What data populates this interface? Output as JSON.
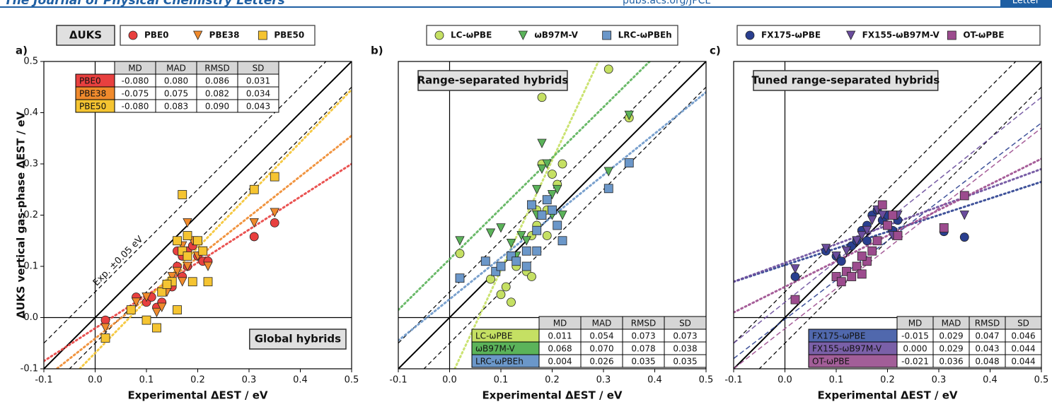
{
  "header": {
    "journal": "The Journal of Physical Chemistry Letters",
    "url": "pubs.acs.org/JPCL",
    "article_type": "Letter"
  },
  "chart_data": [
    {
      "type": "scatter",
      "panel_label": "a)",
      "legend_title": "ΔUKS",
      "annotation": "Global hybrids",
      "annotation_corner": "lower right",
      "reference_label": "Exp. ±0.05 eV",
      "reference_offsets": [
        -0.05,
        0,
        0.05
      ],
      "xlabel": "Experimental ΔEST / eV",
      "ylabel": "ΔUKS vertical gas-phase ΔEST / eV",
      "xlim": [
        -0.1,
        0.5
      ],
      "ylim": [
        -0.1,
        0.5
      ],
      "xticks": [
        -0.1,
        {
          "value": 0,
          "label": "0.0"
        },
        0.1,
        0.2,
        0.3,
        0.4,
        0.5
      ],
      "yticks": [
        -0.1,
        {
          "value": 0,
          "label": "0.0"
        },
        0.1,
        0.2,
        0.3,
        0.4,
        0.5
      ],
      "series": [
        {
          "name": "PBE0",
          "color": "#e8403f",
          "marker": "circle",
          "x": [
            0.02,
            0.08,
            0.1,
            0.11,
            0.12,
            0.13,
            0.15,
            0.16,
            0.17,
            0.17,
            0.18,
            0.19,
            0.2,
            0.21,
            0.22,
            0.2,
            0.18,
            0.31,
            0.35,
            0.16
          ],
          "y": [
            -0.005,
            0.04,
            0.03,
            0.04,
            0.02,
            0.03,
            0.06,
            0.1,
            0.12,
            0.08,
            0.13,
            0.14,
            0.12,
            0.11,
            0.11,
            0.15,
            0.1,
            0.158,
            0.185,
            0.13
          ],
          "fits": [
            {
              "style": "dotted",
              "x": [
                -0.1,
                0.5
              ],
              "y": [
                -0.085,
                0.3
              ]
            }
          ]
        },
        {
          "name": "PBE38",
          "color": "#f08a2c",
          "marker": "triangle",
          "x": [
            0.02,
            0.08,
            0.1,
            0.12,
            0.14,
            0.16,
            0.17,
            0.18,
            0.19,
            0.2,
            0.21,
            0.22,
            0.15,
            0.18,
            0.31,
            0.35,
            0.13,
            0.17
          ],
          "y": [
            -0.02,
            0.03,
            0.04,
            0.01,
            0.05,
            0.09,
            0.14,
            0.185,
            0.15,
            0.12,
            0.13,
            0.1,
            0.08,
            0.1,
            0.185,
            0.205,
            0.02,
            0.07
          ],
          "fits": [
            {
              "style": "dotted",
              "x": [
                -0.1,
                0.5
              ],
              "y": [
                -0.12,
                0.355
              ]
            }
          ]
        },
        {
          "name": "PBE50",
          "color": "#f5c431",
          "marker": "square",
          "x": [
            0.02,
            0.07,
            0.1,
            0.12,
            0.13,
            0.15,
            0.16,
            0.16,
            0.17,
            0.17,
            0.18,
            0.19,
            0.2,
            0.21,
            0.22,
            0.31,
            0.35,
            0.14,
            0.18
          ],
          "y": [
            -0.04,
            0.015,
            -0.005,
            -0.02,
            0.05,
            0.07,
            0.015,
            0.15,
            0.24,
            0.13,
            0.12,
            0.07,
            0.15,
            0.13,
            0.07,
            0.25,
            0.275,
            0.065,
            0.16
          ],
          "fits": [
            {
              "style": "dotted",
              "x": [
                -0.03,
                0.5
              ],
              "y": [
                -0.1,
                0.445
              ]
            }
          ]
        }
      ],
      "table_corner": "upper left",
      "table": {
        "columns": [
          "MD",
          "MAD",
          "RMSD",
          "SD"
        ],
        "rows": [
          {
            "label": "PBE0",
            "color": "#e8403f",
            "cells": [
              "-0.080",
              "0.080",
              "0.086",
              "0.031"
            ]
          },
          {
            "label": "PBE38",
            "color": "#f08a2c",
            "cells": [
              "-0.075",
              "0.075",
              "0.082",
              "0.034"
            ]
          },
          {
            "label": "PBE50",
            "color": "#f5c431",
            "cells": [
              "-0.080",
              "0.083",
              "0.090",
              "0.043"
            ]
          }
        ]
      }
    },
    {
      "type": "scatter",
      "panel_label": "b)",
      "annotation": "Range-separated hybrids",
      "annotation_corner": "upper left",
      "reference_offsets": [
        -0.05,
        0,
        0.05
      ],
      "xlabel": "Experimental ΔEST / eV",
      "xlim": [
        -0.1,
        0.5
      ],
      "ylim": [
        -0.1,
        0.5
      ],
      "xticks": [
        -0.1,
        {
          "value": 0,
          "label": "0.0"
        },
        0.1,
        0.2,
        0.3,
        0.4,
        0.5
      ],
      "series": [
        {
          "name": "LC-ωPBE",
          "color": "#c5e063",
          "marker": "circle",
          "x": [
            0.02,
            0.08,
            0.1,
            0.11,
            0.12,
            0.13,
            0.15,
            0.16,
            0.16,
            0.17,
            0.18,
            0.18,
            0.19,
            0.2,
            0.21,
            0.22,
            0.17,
            0.31,
            0.35,
            0.19
          ],
          "y": [
            0.125,
            0.075,
            0.045,
            0.06,
            0.03,
            0.1,
            0.09,
            0.08,
            0.16,
            0.21,
            0.43,
            0.3,
            0.21,
            0.28,
            0.26,
            0.3,
            0.18,
            0.485,
            0.39,
            0.16
          ],
          "fits": [
            {
              "style": "dotted",
              "x": [
                0.01,
                0.29
              ],
              "y": [
                -0.1,
                0.5
              ]
            }
          ]
        },
        {
          "name": "ωB97M-V",
          "color": "#5bb35a",
          "marker": "triangle",
          "x": [
            0.02,
            0.08,
            0.1,
            0.12,
            0.14,
            0.15,
            0.16,
            0.17,
            0.18,
            0.18,
            0.19,
            0.2,
            0.21,
            0.2,
            0.22,
            0.31,
            0.35,
            0.13,
            0.17
          ],
          "y": [
            0.15,
            0.165,
            0.175,
            0.145,
            0.16,
            0.15,
            0.22,
            0.25,
            0.34,
            0.29,
            0.3,
            0.24,
            0.25,
            0.2,
            0.2,
            0.285,
            0.395,
            0.12,
            0.2
          ],
          "fits": [
            {
              "style": "dotted",
              "x": [
                -0.1,
                0.39
              ],
              "y": [
                0.015,
                0.5
              ]
            }
          ]
        },
        {
          "name": "LRC-ωPBEh",
          "color": "#6b97c9",
          "marker": "square",
          "x": [
            0.02,
            0.07,
            0.09,
            0.1,
            0.12,
            0.13,
            0.15,
            0.16,
            0.17,
            0.18,
            0.19,
            0.2,
            0.21,
            0.22,
            0.15,
            0.31,
            0.35,
            0.17
          ],
          "y": [
            0.077,
            0.11,
            0.09,
            0.1,
            0.12,
            0.11,
            0.13,
            0.22,
            0.17,
            0.2,
            0.23,
            0.21,
            0.18,
            0.15,
            0.1,
            0.252,
            0.302,
            0.13
          ],
          "fits": [
            {
              "style": "dotted",
              "x": [
                -0.1,
                0.5
              ],
              "y": [
                -0.045,
                0.44
              ]
            }
          ]
        }
      ],
      "table_corner": "lower right",
      "table": {
        "columns": [
          "MD",
          "MAD",
          "RMSD",
          "SD"
        ],
        "rows": [
          {
            "label": "LC-ωPBE",
            "color": "#c5e063",
            "cells": [
              "0.011",
              "0.054",
              "0.073",
              "0.073"
            ]
          },
          {
            "label": "ωB97M-V",
            "color": "#5bb35a",
            "cells": [
              "0.068",
              "0.070",
              "0.078",
              "0.038"
            ]
          },
          {
            "label": "LRC-ωPBEh",
            "color": "#6b97c9",
            "cells": [
              "0.004",
              "0.026",
              "0.035",
              "0.035"
            ]
          }
        ]
      }
    },
    {
      "type": "scatter",
      "panel_label": "c)",
      "annotation": "Tuned range-separated hybrids",
      "annotation_corner": "upper left",
      "reference_offsets": [
        -0.05,
        0,
        0.05
      ],
      "xlabel": "Experimental ΔEST / eV",
      "xlim": [
        -0.1,
        0.5
      ],
      "ylim": [
        -0.1,
        0.5
      ],
      "xticks": [
        -0.1,
        {
          "value": 0,
          "label": "0.0"
        },
        0.1,
        0.2,
        0.3,
        0.4,
        0.5
      ],
      "series": [
        {
          "name": "FX175-ωPBE",
          "color": "#2a3f8f",
          "marker": "circle",
          "x": [
            0.02,
            0.08,
            0.1,
            0.11,
            0.13,
            0.14,
            0.15,
            0.16,
            0.17,
            0.18,
            0.19,
            0.2,
            0.21,
            0.22,
            0.16,
            0.31,
            0.35
          ],
          "y": [
            0.08,
            0.13,
            0.12,
            0.11,
            0.14,
            0.15,
            0.17,
            0.18,
            0.2,
            0.21,
            0.19,
            0.2,
            0.17,
            0.19,
            0.15,
            0.168,
            0.157
          ],
          "fits": [
            {
              "style": "dotted",
              "x": [
                -0.1,
                0.5
              ],
              "y": [
                0.07,
                0.265
              ]
            },
            {
              "style": "dashed",
              "x": [
                -0.1,
                0.5
              ],
              "y": [
                -0.08,
                0.38
              ]
            }
          ]
        },
        {
          "name": "FX155-ωB97M-V",
          "color": "#6a4c9c",
          "marker": "triangle",
          "x": [
            0.02,
            0.08,
            0.1,
            0.12,
            0.14,
            0.15,
            0.17,
            0.18,
            0.19,
            0.2,
            0.21,
            0.22,
            0.16,
            0.31,
            0.35
          ],
          "y": [
            0.095,
            0.135,
            0.12,
            0.13,
            0.15,
            0.16,
            0.19,
            0.21,
            0.2,
            0.18,
            0.16,
            0.2,
            0.17,
            0.175,
            0.2
          ],
          "fits": [
            {
              "style": "dotted",
              "x": [
                -0.1,
                0.5
              ],
              "y": [
                0.07,
                0.29
              ]
            },
            {
              "style": "dashed",
              "x": [
                -0.1,
                0.5
              ],
              "y": [
                -0.05,
                0.43
              ]
            }
          ]
        },
        {
          "name": "OT-ωPBE",
          "color": "#9c4c8e",
          "marker": "square",
          "x": [
            0.02,
            0.1,
            0.11,
            0.12,
            0.13,
            0.14,
            0.15,
            0.16,
            0.17,
            0.18,
            0.19,
            0.2,
            0.21,
            0.22,
            0.15,
            0.31,
            0.35
          ],
          "y": [
            0.035,
            0.08,
            0.07,
            0.09,
            0.08,
            0.1,
            0.085,
            0.11,
            0.13,
            0.15,
            0.22,
            0.18,
            0.2,
            0.16,
            0.12,
            0.175,
            0.238
          ],
          "fits": [
            {
              "style": "dotted",
              "x": [
                -0.1,
                0.5
              ],
              "y": [
                0.01,
                0.31
              ]
            },
            {
              "style": "dashed",
              "x": [
                -0.1,
                0.5
              ],
              "y": [
                -0.1,
                0.37
              ]
            }
          ]
        }
      ],
      "table_corner": "lower right",
      "table": {
        "columns": [
          "MD",
          "MAD",
          "RMSD",
          "SD"
        ],
        "rows": [
          {
            "label": "FX175-ωPBE",
            "color": "#5068ad",
            "cells": [
              "-0.015",
              "0.029",
              "0.047",
              "0.046"
            ]
          },
          {
            "label": "FX155-ωB97M-V",
            "color": "#7a60a8",
            "cells": [
              "0.000",
              "0.029",
              "0.043",
              "0.044"
            ]
          },
          {
            "label": "OT-ωPBE",
            "color": "#a25e98",
            "cells": [
              "-0.021",
              "0.036",
              "0.048",
              "0.044"
            ]
          }
        ]
      }
    }
  ]
}
